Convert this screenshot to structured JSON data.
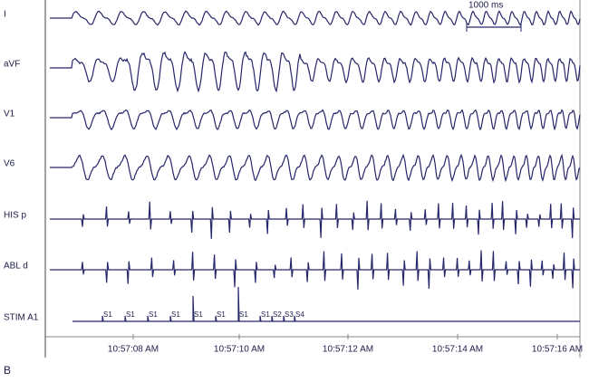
{
  "panel_label": "B",
  "scale_bar": "1000 ms",
  "channels": [
    "I",
    "aVF",
    "V1",
    "V6",
    "HIS p",
    "ABL d",
    "STIM A1"
  ],
  "time_labels": [
    "10:57:08 AM",
    "10:57:10 AM",
    "10:57:12 AM",
    "10:57:14 AM",
    "10:57:16 AM"
  ],
  "stimuli": [
    "S1",
    "S1",
    "S1",
    "S1",
    "S1",
    "S1",
    "S1",
    "S1",
    "S2",
    "S3",
    "S4"
  ]
}
